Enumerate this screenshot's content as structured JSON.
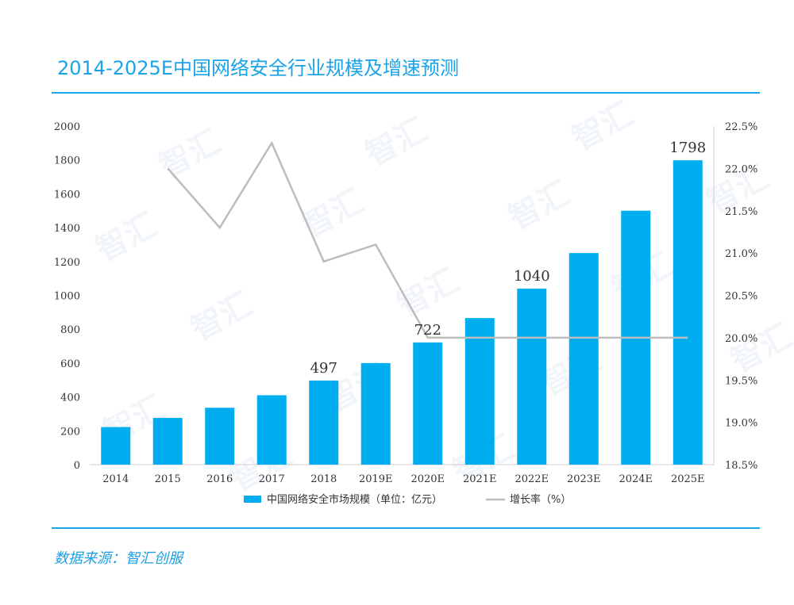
{
  "title": "2014-2025E中国网络安全行业规模及增速预测",
  "source": "数据来源：智汇创服",
  "watermark": "智汇",
  "colors": {
    "accent": "#1aa3e8",
    "bar": "#00aeef",
    "line": "#bdbdbd",
    "text": "#333333"
  },
  "chart_data": {
    "type": "bar",
    "categories": [
      "2014",
      "2015",
      "2016",
      "2017",
      "2018",
      "2019E",
      "2020E",
      "2021E",
      "2022E",
      "2023E",
      "2024E",
      "2025E"
    ],
    "series": [
      {
        "name": "中国网络安全市场规模（单位：亿元）",
        "type": "bar",
        "axis": "left",
        "values": [
          222,
          276,
          336,
          410,
          497,
          600,
          722,
          866,
          1040,
          1250,
          1500,
          1798
        ]
      },
      {
        "name": "增长率（%）",
        "type": "line",
        "axis": "right",
        "values": [
          null,
          22.0,
          21.3,
          22.3,
          20.9,
          21.1,
          20.0,
          20.0,
          20.0,
          20.0,
          20.0,
          20.0
        ]
      }
    ],
    "data_labels": {
      "2018": "497",
      "2020E": "722",
      "2022E": "1040",
      "2025E": "1798"
    },
    "y_left": {
      "min": 0,
      "max": 2000,
      "ticks": [
        "0",
        "200",
        "400",
        "600",
        "800",
        "1000",
        "1200",
        "1400",
        "1600",
        "1800",
        "2000"
      ]
    },
    "y_right": {
      "min": 18.5,
      "max": 22.5,
      "ticks": [
        "18.5%",
        "19.0%",
        "19.5%",
        "20.0%",
        "20.5%",
        "21.0%",
        "21.5%",
        "22.0%",
        "22.5%"
      ]
    },
    "legend": {
      "position": "bottom",
      "items": [
        "中国网络安全市场规模（单位：亿元）",
        "增长率（%）"
      ]
    },
    "grid": false
  }
}
